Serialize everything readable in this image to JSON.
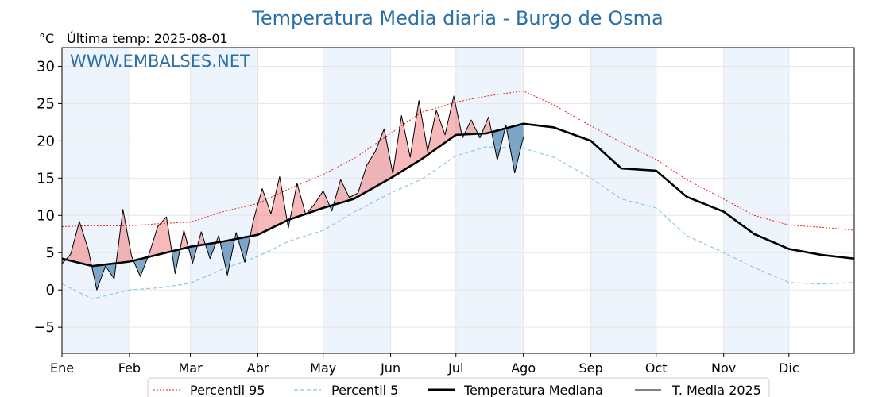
{
  "chart_data": {
    "type": "line",
    "title": "Temperatura Media diaria - Burgo de Osma",
    "unit_label": "°C",
    "subtitle": "Última temp: 2025-08-01",
    "watermark": "WWW.EMBALSES.NET",
    "xlabel": "",
    "ylabel": "",
    "x_unit": "day of year",
    "xlim": [
      1,
      365
    ],
    "ylim": [
      -8.5,
      32.5
    ],
    "yticks": [
      -5,
      0,
      5,
      10,
      15,
      20,
      25,
      30
    ],
    "ytick_labels": [
      "−5",
      "0",
      "5",
      "10",
      "15",
      "20",
      "25",
      "30"
    ],
    "months": [
      "Ene",
      "Feb",
      "Mar",
      "Abr",
      "May",
      "Jun",
      "Jul",
      "Ago",
      "Sep",
      "Oct",
      "Nov",
      "Dic"
    ],
    "month_start_days": [
      1,
      32,
      60,
      91,
      121,
      152,
      182,
      213,
      244,
      274,
      305,
      335
    ],
    "grid": true,
    "shaded_months": [
      "Ene",
      "Mar",
      "May",
      "Jul",
      "Sep",
      "Nov"
    ],
    "legend_position": "bottom",
    "colors": {
      "p95": "#e8231c",
      "p5": "#8fc6e2",
      "median": "#000000",
      "actual": "#000000",
      "above": "#f08080",
      "below": "#2f6ea4",
      "title": "#2a6fa8",
      "watermark": "#2a6fa8",
      "month_band": "#eef4fb"
    },
    "series": [
      {
        "name": "Percentil 95",
        "style": "dotted",
        "x": [
          1,
          15,
          32,
          46,
          60,
          75,
          91,
          105,
          121,
          135,
          152,
          166,
          182,
          196,
          213,
          227,
          244,
          258,
          274,
          288,
          305,
          319,
          335,
          350,
          365
        ],
        "values": [
          8.5,
          8.6,
          8.6,
          8.9,
          9.1,
          10.5,
          11.6,
          13.5,
          15.5,
          17.6,
          21.0,
          23.8,
          25.2,
          26.0,
          26.7,
          24.8,
          22.0,
          19.8,
          17.5,
          14.8,
          12.2,
          10.0,
          8.7,
          8.4,
          8.0
        ]
      },
      {
        "name": "Percentil 5",
        "style": "dashed",
        "x": [
          1,
          15,
          32,
          46,
          60,
          75,
          91,
          105,
          121,
          135,
          152,
          166,
          182,
          196,
          213,
          227,
          244,
          258,
          274,
          288,
          305,
          319,
          335,
          350,
          365
        ],
        "values": [
          0.8,
          -1.2,
          0.0,
          0.3,
          0.9,
          2.8,
          4.5,
          6.5,
          8.0,
          10.4,
          13.0,
          14.8,
          18.0,
          19.2,
          19.0,
          17.8,
          15.0,
          12.2,
          11.0,
          7.3,
          5.0,
          3.0,
          1.0,
          0.8,
          1.0
        ]
      },
      {
        "name": "Temperatura Mediana",
        "style": "solid-thick",
        "x": [
          1,
          15,
          32,
          46,
          60,
          75,
          91,
          105,
          121,
          135,
          152,
          166,
          182,
          196,
          213,
          227,
          244,
          258,
          274,
          288,
          305,
          319,
          335,
          350,
          365
        ],
        "values": [
          4.2,
          3.2,
          3.8,
          4.8,
          5.8,
          6.5,
          7.4,
          9.4,
          11.0,
          12.2,
          15.0,
          17.5,
          20.8,
          21.0,
          22.3,
          21.8,
          20.0,
          16.3,
          16.0,
          12.5,
          10.5,
          7.5,
          5.5,
          4.7,
          4.2
        ]
      },
      {
        "name": "T. Media 2025",
        "style": "solid-thin",
        "x": [
          1,
          5,
          9,
          13,
          17,
          21,
          25,
          29,
          33,
          37,
          41,
          45,
          49,
          53,
          57,
          61,
          65,
          69,
          73,
          77,
          81,
          85,
          89,
          93,
          97,
          101,
          105,
          109,
          113,
          117,
          121,
          125,
          129,
          133,
          137,
          141,
          145,
          149,
          153,
          157,
          161,
          165,
          169,
          173,
          177,
          181,
          185,
          189,
          193,
          197,
          201,
          205,
          209,
          213
        ],
        "values": [
          3.5,
          4.8,
          9.2,
          5.5,
          0.0,
          3.2,
          1.5,
          10.8,
          4.5,
          1.8,
          4.8,
          8.5,
          9.8,
          2.2,
          8.0,
          3.6,
          7.8,
          4.2,
          7.3,
          2.0,
          7.7,
          3.7,
          9.4,
          13.6,
          10.2,
          15.2,
          8.3,
          14.3,
          10.1,
          11.5,
          13.3,
          10.6,
          14.8,
          12.4,
          13.0,
          16.7,
          18.6,
          21.6,
          15.6,
          23.4,
          17.8,
          25.4,
          18.6,
          24.1,
          20.8,
          26.0,
          20.4,
          22.8,
          20.4,
          23.2,
          17.4,
          22.1,
          15.7,
          20.5
        ]
      }
    ]
  },
  "legend": {
    "p95": "Percentil 95",
    "p5": "Percentil 5",
    "median": "Temperatura Mediana",
    "actual": "T. Media 2025"
  }
}
